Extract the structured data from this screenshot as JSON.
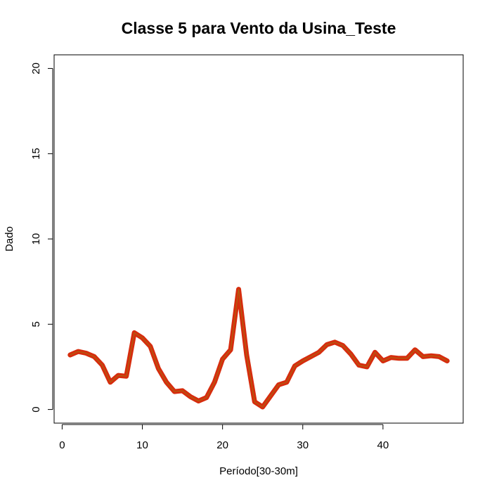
{
  "chart_data": {
    "type": "line",
    "title": "Classe  5 para Vento da Usina_Teste",
    "xlabel": "Período[30-30m]",
    "ylabel": "Dado",
    "xlim": [
      -1,
      50
    ],
    "ylim": [
      -0.8,
      20.8
    ],
    "xticks": [
      0,
      10,
      20,
      30,
      40
    ],
    "xtick_labels": [
      "0",
      "10",
      "20",
      "30",
      "40"
    ],
    "yticks": [
      0,
      5,
      10,
      15,
      20
    ],
    "ytick_labels": [
      "0",
      "5",
      "10",
      "15",
      "20"
    ],
    "grid": false,
    "series": [
      {
        "color": "#d62d0e",
        "inner_color": "#9a7a10",
        "x": [
          1,
          2,
          3,
          4,
          5,
          6,
          7,
          8,
          9,
          10,
          11,
          12,
          13,
          14,
          15,
          16,
          17,
          18,
          19,
          20,
          21,
          22,
          23,
          24,
          25,
          26,
          27,
          28,
          29,
          30,
          31,
          32,
          33,
          34,
          35,
          36,
          37,
          38,
          39,
          40,
          41,
          42,
          43,
          44,
          45,
          46,
          47,
          48
        ],
        "y": [
          3.2,
          3.4,
          3.3,
          3.1,
          2.6,
          1.6,
          2.0,
          1.95,
          4.5,
          4.2,
          3.7,
          2.4,
          1.6,
          1.05,
          1.1,
          0.75,
          0.5,
          0.7,
          1.6,
          2.95,
          3.5,
          7.05,
          3.2,
          0.45,
          0.15,
          0.8,
          1.45,
          1.6,
          2.55,
          2.85,
          3.1,
          3.35,
          3.8,
          3.95,
          3.75,
          3.25,
          2.6,
          2.5,
          3.35,
          2.85,
          3.05,
          3.0,
          3.0,
          3.5,
          3.1,
          3.15,
          3.1,
          2.85
        ]
      }
    ]
  }
}
